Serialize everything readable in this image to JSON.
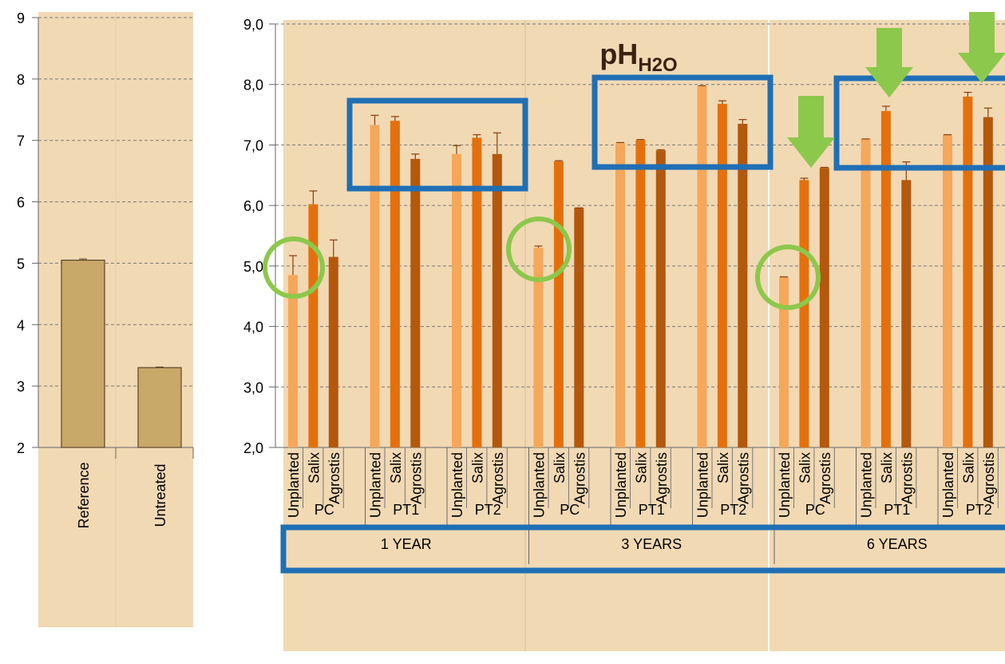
{
  "chart_data": [
    {
      "type": "bar",
      "ylim": [
        2,
        9
      ],
      "yticks": [
        "2",
        "3",
        "4",
        "5",
        "6",
        "7",
        "8",
        "9"
      ],
      "categories": [
        "Reference",
        "Untreated"
      ],
      "values": [
        5.05,
        3.3
      ],
      "errors": [
        0.02,
        0.01
      ],
      "colors": {
        "bar": "#c8a96a",
        "panel": "#f1d9b4",
        "grid": "#777777"
      },
      "grid": true
    },
    {
      "type": "bar",
      "title_main": "pH",
      "title_sub": "H2O",
      "ylim": [
        2,
        9
      ],
      "yticks": [
        "2,0",
        "3,0",
        "4,0",
        "5,0",
        "6,0",
        "7,0",
        "8,0",
        "9,0"
      ],
      "grid": true,
      "groups": [
        {
          "label": "1 YEAR",
          "subgroups": [
            {
              "label": "PC",
              "bars": [
                {
                  "name": "Unplanted",
                  "value": 4.85,
                  "err": 0.32
                },
                {
                  "name": "Salix",
                  "value": 6.02,
                  "err": 0.22
                },
                {
                  "name": "Agrostis",
                  "value": 5.15,
                  "err": 0.28
                }
              ]
            },
            {
              "label": "PT1",
              "bars": [
                {
                  "name": "Unplanted",
                  "value": 7.33,
                  "err": 0.16
                },
                {
                  "name": "Salix",
                  "value": 7.4,
                  "err": 0.07
                },
                {
                  "name": "Agrostis",
                  "value": 6.77,
                  "err": 0.08
                }
              ]
            },
            {
              "label": "PT2",
              "bars": [
                {
                  "name": "Unplanted",
                  "value": 6.85,
                  "err": 0.14
                },
                {
                  "name": "Salix",
                  "value": 7.12,
                  "err": 0.05
                },
                {
                  "name": "Agrostis",
                  "value": 6.85,
                  "err": 0.35
                }
              ]
            }
          ]
        },
        {
          "label": "3 YEARS",
          "subgroups": [
            {
              "label": "PC",
              "bars": [
                {
                  "name": "Unplanted",
                  "value": 5.3,
                  "err": 0.03
                },
                {
                  "name": "Salix",
                  "value": 6.73,
                  "err": 0.01
                },
                {
                  "name": "Agrostis",
                  "value": 5.96,
                  "err": 0
                }
              ]
            },
            {
              "label": "PT1",
              "bars": [
                {
                  "name": "Unplanted",
                  "value": 7.03,
                  "err": 0.01
                },
                {
                  "name": "Salix",
                  "value": 7.08,
                  "err": 0.01
                },
                {
                  "name": "Agrostis",
                  "value": 6.91,
                  "err": 0.01
                }
              ]
            },
            {
              "label": "PT2",
              "bars": [
                {
                  "name": "Unplanted",
                  "value": 7.97,
                  "err": 0.01
                },
                {
                  "name": "Salix",
                  "value": 7.68,
                  "err": 0.05
                },
                {
                  "name": "Agrostis",
                  "value": 7.35,
                  "err": 0.07
                }
              ]
            }
          ]
        },
        {
          "label": "6 YEARS",
          "subgroups": [
            {
              "label": "PC",
              "bars": [
                {
                  "name": "Unplanted",
                  "value": 4.82,
                  "err": 0
                },
                {
                  "name": "Salix",
                  "value": 6.42,
                  "err": 0.03
                },
                {
                  "name": "Agrostis",
                  "value": 6.62,
                  "err": 0.01
                }
              ]
            },
            {
              "label": "PT1",
              "bars": [
                {
                  "name": "Unplanted",
                  "value": 7.1,
                  "err": 0
                },
                {
                  "name": "Salix",
                  "value": 7.56,
                  "err": 0.08
                },
                {
                  "name": "Agrostis",
                  "value": 6.42,
                  "err": 0.3
                }
              ]
            },
            {
              "label": "PT2",
              "bars": [
                {
                  "name": "Unplanted",
                  "value": 7.17,
                  "err": 0
                },
                {
                  "name": "Salix",
                  "value": 7.8,
                  "err": 0.07
                },
                {
                  "name": "Agrostis",
                  "value": 7.46,
                  "err": 0.15
                }
              ]
            }
          ]
        }
      ],
      "colors": {
        "unplanted": "#f5a75a",
        "salix": "#e4700d",
        "agrostis": "#b4580d",
        "panel": "#f1d9b4",
        "highlight_box": "#1f6fb5",
        "circle": "#8cc84b",
        "arrow": "#8cc84b",
        "grid": "#777777"
      }
    }
  ]
}
